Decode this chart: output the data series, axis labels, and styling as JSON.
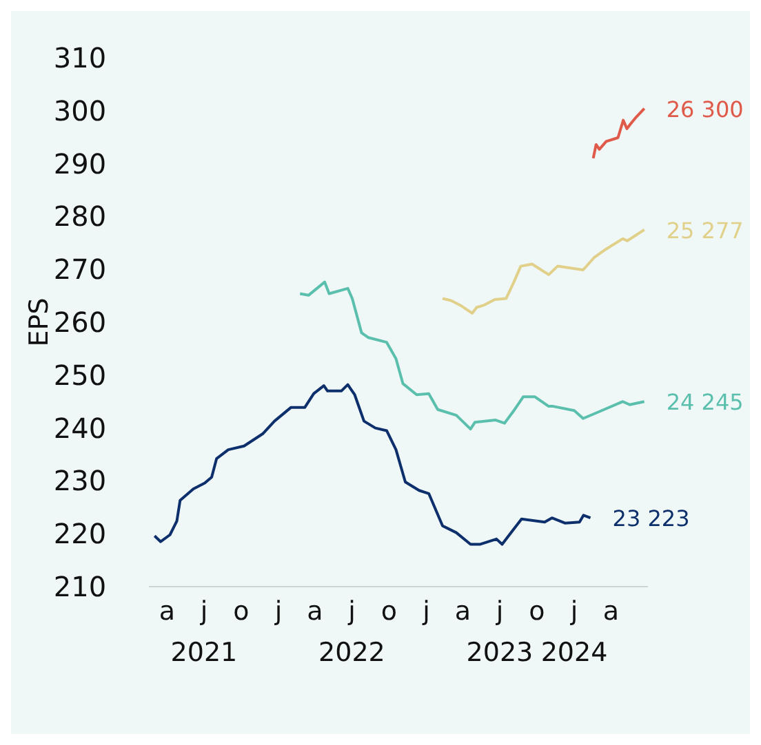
{
  "chart_data": {
    "type": "line",
    "ylabel": "EPS",
    "xlim": [
      "2021-02-15",
      "2024-07-01"
    ],
    "ylim": [
      210,
      310
    ],
    "yticks": [
      210,
      220,
      230,
      240,
      250,
      260,
      270,
      280,
      290,
      300,
      310
    ],
    "xticks": [
      {
        "value": "2021-04-01",
        "label": "a"
      },
      {
        "value": "2021-07-01",
        "label": "j\n2021"
      },
      {
        "value": "2021-10-01",
        "label": "o"
      },
      {
        "value": "2022-01-01",
        "label": "j"
      },
      {
        "value": "2022-04-01",
        "label": "a"
      },
      {
        "value": "2022-07-01",
        "label": "j\n2022"
      },
      {
        "value": "2022-10-01",
        "label": "o"
      },
      {
        "value": "2023-01-01",
        "label": "j"
      },
      {
        "value": "2023-04-01",
        "label": "a"
      },
      {
        "value": "2023-07-01",
        "label": "j\n2023"
      },
      {
        "value": "2023-10-01",
        "label": "o"
      },
      {
        "value": "2024-01-01",
        "label": "j\n2024"
      },
      {
        "value": "2024-04-01",
        "label": "a"
      }
    ],
    "grid": false,
    "legend": false,
    "marker": "none",
    "line_style": "solid",
    "series": [
      {
        "name": "23 223",
        "color": "#0d2f6b",
        "x": [
          "2021-03-01",
          "2021-03-16",
          "2021-04-08",
          "2021-04-25",
          "2021-05-03",
          "2021-06-05",
          "2021-07-03",
          "2021-07-20",
          "2021-08-01",
          "2021-08-30",
          "2021-10-08",
          "2021-11-23",
          "2021-12-22",
          "2022-02-01",
          "2022-03-07",
          "2022-03-29",
          "2022-04-23",
          "2022-05-02",
          "2022-06-05",
          "2022-06-21",
          "2022-07-08",
          "2022-07-31",
          "2022-08-28",
          "2022-09-25",
          "2022-10-18",
          "2022-11-10",
          "2022-12-14",
          "2023-01-07",
          "2023-02-10",
          "2023-03-16",
          "2023-04-20",
          "2023-05-13",
          "2023-06-23",
          "2023-07-07",
          "2023-08-03",
          "2023-08-24",
          "2023-10-20",
          "2023-11-07",
          "2023-12-10",
          "2024-01-14",
          "2024-01-24",
          "2024-02-10"
        ],
        "values": [
          219.6,
          218.5,
          219.8,
          222.4,
          226.3,
          228.5,
          229.6,
          230.7,
          234.2,
          235.9,
          236.6,
          238.9,
          241.3,
          243.9,
          243.9,
          246.5,
          248.0,
          247.0,
          247.0,
          248.2,
          246.3,
          241.3,
          240.0,
          239.5,
          235.9,
          229.8,
          228.2,
          227.6,
          221.5,
          220.2,
          218.0,
          218.0,
          219.0,
          218.0,
          220.7,
          222.8,
          222.2,
          223.0,
          222.0,
          222.2,
          223.5,
          223.0
        ]
      },
      {
        "name": "24 245",
        "color": "#5bbfad",
        "x": [
          "2022-02-23",
          "2022-03-16",
          "2022-04-25",
          "2022-05-06",
          "2022-06-21",
          "2022-07-02",
          "2022-07-25",
          "2022-08-11",
          "2022-09-25",
          "2022-10-18",
          "2022-11-04",
          "2022-12-08",
          "2023-01-07",
          "2023-01-29",
          "2023-03-16",
          "2023-04-20",
          "2023-05-01",
          "2023-06-21",
          "2023-07-13",
          "2023-08-05",
          "2023-08-28",
          "2023-09-26",
          "2023-10-30",
          "2023-11-10",
          "2024-01-01",
          "2024-01-23",
          "2024-03-15",
          "2024-04-30",
          "2024-05-17",
          "2024-06-22"
        ],
        "values": [
          265.4,
          265.1,
          267.6,
          265.4,
          266.4,
          264.5,
          258.0,
          257.1,
          256.2,
          253.1,
          248.4,
          246.3,
          246.5,
          243.5,
          242.4,
          239.8,
          241.1,
          241.5,
          240.9,
          243.3,
          245.9,
          245.9,
          244.1,
          244.1,
          243.3,
          241.8,
          243.5,
          245.0,
          244.4,
          245.0
        ]
      },
      {
        "name": "25 277",
        "color": "#e0d08a",
        "x": [
          "2023-02-10",
          "2023-03-03",
          "2023-03-26",
          "2023-04-24",
          "2023-05-05",
          "2023-05-22",
          "2023-06-19",
          "2023-07-17",
          "2023-08-05",
          "2023-08-22",
          "2023-09-19",
          "2023-10-30",
          "2023-11-21",
          "2024-01-23",
          "2024-02-20",
          "2024-03-15",
          "2024-04-30",
          "2024-05-11",
          "2024-06-22"
        ],
        "values": [
          264.5,
          264.1,
          263.2,
          261.7,
          262.8,
          263.2,
          264.3,
          264.5,
          267.6,
          270.6,
          271.0,
          269.0,
          270.6,
          269.9,
          272.3,
          273.6,
          275.8,
          275.4,
          277.5
        ]
      },
      {
        "name": "26 300",
        "color": "#e05a4a",
        "x": [
          "2024-02-17",
          "2024-02-24",
          "2024-03-03",
          "2024-03-20",
          "2024-04-18",
          "2024-05-01",
          "2024-05-10",
          "2024-05-19",
          "2024-06-02",
          "2024-06-22"
        ],
        "values": [
          291.0,
          293.6,
          292.7,
          294.2,
          294.9,
          298.2,
          296.6,
          297.5,
          298.8,
          300.4
        ]
      }
    ]
  }
}
